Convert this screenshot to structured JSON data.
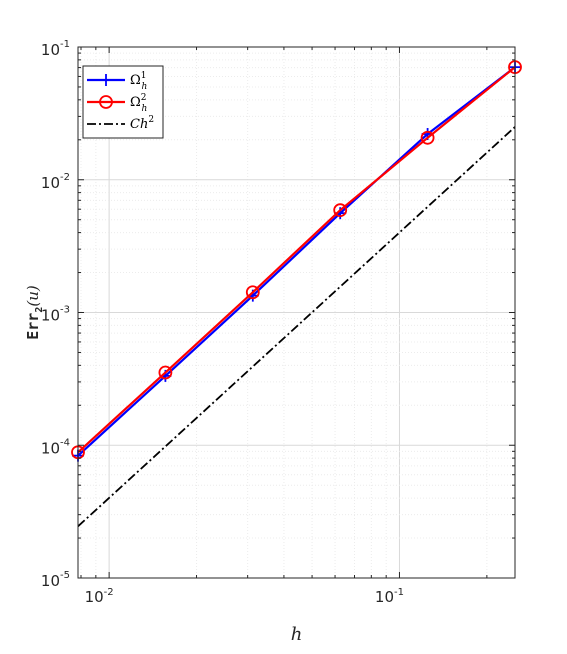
{
  "chart_data": {
    "type": "line",
    "xlabel": "h",
    "ylabel": "Err2(u)",
    "ylabel_parts": {
      "base": "Err",
      "subscript": "2",
      "arg": "(u)"
    },
    "xscale": "log",
    "yscale": "log",
    "xlim": [
      0.0078125,
      0.25
    ],
    "ylim": [
      1e-05,
      0.1
    ],
    "x_ticks": [
      {
        "value": 0.01,
        "base": "10",
        "exp": "-2"
      },
      {
        "value": 0.1,
        "base": "10",
        "exp": "-1"
      }
    ],
    "y_ticks": [
      {
        "value": 1e-05,
        "base": "10",
        "exp": "-5"
      },
      {
        "value": 0.0001,
        "base": "10",
        "exp": "-4"
      },
      {
        "value": 0.001,
        "base": "10",
        "exp": "-3"
      },
      {
        "value": 0.01,
        "base": "10",
        "exp": "-2"
      },
      {
        "value": 0.1,
        "base": "10",
        "exp": "-1"
      }
    ],
    "grid": true,
    "minor_grid": true,
    "legend_position": "top-left",
    "series": [
      {
        "name": "Ω_h^1",
        "label_main": "Ω",
        "label_sub": "h",
        "label_sup": "1",
        "color": "#0000ff",
        "marker": "plus",
        "style": "solid",
        "x": [
          0.0078125,
          0.015625,
          0.03125,
          0.0625,
          0.125,
          0.25
        ],
        "y": [
          8.35e-05,
          0.000333,
          0.00134,
          0.0056,
          0.0221,
          0.0705
        ]
      },
      {
        "name": "Ω_h^2",
        "label_main": "Ω",
        "label_sub": "h",
        "label_sup": "2",
        "color": "#ff0000",
        "marker": "circle",
        "style": "solid",
        "x": [
          0.0078125,
          0.015625,
          0.03125,
          0.0625,
          0.125,
          0.25
        ],
        "y": [
          8.85e-05,
          0.000353,
          0.00142,
          0.0059,
          0.0207,
          0.0705
        ]
      },
      {
        "name": "Ch^2",
        "label_main": "Ch",
        "label_sub": "",
        "label_sup": "2",
        "color": "#000000",
        "marker": "none",
        "style": "dashdot",
        "x": [
          0.0078125,
          0.25
        ],
        "y": [
          2.45e-05,
          0.025
        ]
      }
    ]
  }
}
